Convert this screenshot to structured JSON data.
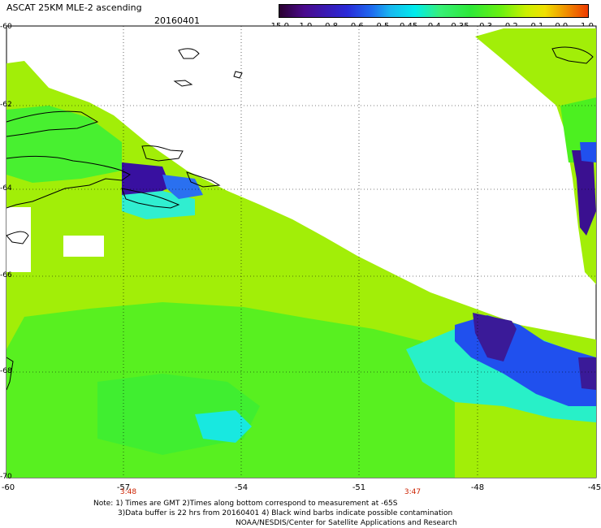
{
  "header": {
    "title": "ASCAT 25KM MLE-2 ascending",
    "date": "20160401"
  },
  "colorbar": {
    "tick_labels": [
      "-15.0",
      "-1.0",
      "-0.8",
      "-0.6",
      "-0.5",
      "-0.45",
      "-0.4",
      "-0.35",
      "-0.3",
      "-0.2",
      "-0.1",
      "0.0",
      "1.0"
    ]
  },
  "map": {
    "lat_labels": [
      "-60",
      "-62",
      "-64",
      "-66",
      "-68",
      "-70"
    ],
    "lon_labels": [
      "-60",
      "-57",
      "-54",
      "-51",
      "-48",
      "-45"
    ],
    "time_labels": [
      "3:48",
      "3:47"
    ],
    "colors": {
      "background_low": "#a0f000",
      "green": "#4cf020",
      "cyan": "#10f0d8",
      "blue": "#1030e8",
      "purple": "#3a0a90"
    }
  },
  "footer": {
    "line1": "Note: 1) Times are GMT 2)Times along bottom correspond to measurement at -65S",
    "line2": "3)Data buffer is 22 hrs from 20160401 4) Black wind barbs indicate possible contamination",
    "line3": "NOAA/NESDIS/Center for Satellite Applications and Research"
  }
}
